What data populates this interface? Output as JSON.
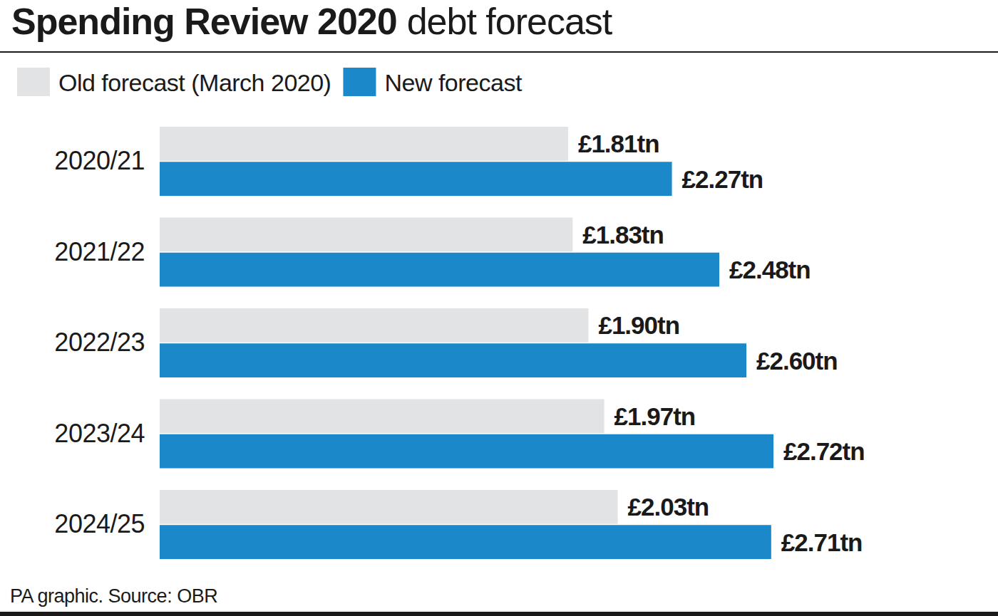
{
  "chart_data": {
    "type": "bar",
    "title": "Spending Review 2020",
    "subtitle": "debt forecast",
    "orientation": "horizontal",
    "categories": [
      "2020/21",
      "2021/22",
      "2022/23",
      "2023/24",
      "2024/25"
    ],
    "series": [
      {
        "name": "Old forecast (March 2020)",
        "color": "#e1e3e5",
        "values": [
          1.81,
          1.83,
          1.9,
          1.97,
          2.03
        ],
        "value_labels": [
          "£1.81tn",
          "£1.83tn",
          "£1.90tn",
          "£1.97tn",
          "£2.03tn"
        ]
      },
      {
        "name": "New forecast",
        "color": "#1a88c9",
        "values": [
          2.27,
          2.48,
          2.6,
          2.72,
          2.71
        ],
        "value_labels": [
          "£2.27tn",
          "£2.48tn",
          "£2.60tn",
          "£2.72tn",
          "£2.71tn"
        ]
      }
    ],
    "data_labels": true,
    "tick_labels": "y",
    "legend": "top-left",
    "annotations": [
      "PA graphic. Source: OBR"
    ]
  }
}
